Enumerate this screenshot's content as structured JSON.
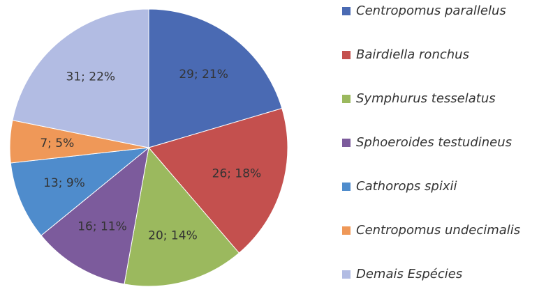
{
  "chart_data": {
    "type": "pie",
    "categories": [
      "Centropomus parallelus",
      "Bairdiella ronchus",
      "Symphurus tesselatus",
      "Sphoeroides testudineus",
      "Cathorops spixii",
      "Centropomus undecimalis",
      "Demais Espécies"
    ],
    "values": [
      29,
      26,
      20,
      16,
      13,
      7,
      31
    ],
    "value_labels": [
      "29; 21%",
      "26; 18%",
      "20; 14%",
      "16; 11%",
      "13; 9%",
      "7; 5%",
      "31; 22%"
    ],
    "colors": [
      "#4a6ab3",
      "#c4504e",
      "#9bb95e",
      "#7c5b9c",
      "#4f8ccc",
      "#ef9858",
      "#b2bce3"
    ],
    "legend": "right"
  }
}
